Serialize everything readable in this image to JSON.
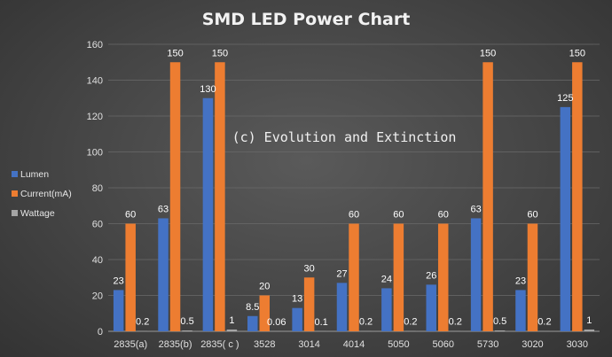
{
  "chart_data": {
    "type": "bar",
    "title": "SMD LED Power Chart",
    "watermark": "(c) Evolution and Extinction",
    "xlabel": "",
    "ylabel": "",
    "ylim": [
      0,
      160
    ],
    "yticks": [
      0,
      20,
      40,
      60,
      80,
      100,
      120,
      140,
      160
    ],
    "grid": true,
    "legend_position": "left",
    "categories": [
      "2835(a)",
      "2835(b)",
      "2835( c )",
      "3528",
      "3014",
      "4014",
      "5050",
      "5060",
      "5730",
      "3020",
      "3030"
    ],
    "series": [
      {
        "name": "Lumen",
        "color": "#4472C4",
        "values": [
          23,
          63,
          130,
          8.5,
          13,
          27,
          24,
          26,
          63,
          23,
          125
        ],
        "labels": [
          "23",
          "63",
          "130",
          "8.5",
          "13",
          "27",
          "24",
          "26",
          "63",
          "23",
          "125"
        ]
      },
      {
        "name": "Current(mA)",
        "color": "#ED7D31",
        "values": [
          60,
          150,
          150,
          20,
          30,
          60,
          60,
          60,
          150,
          60,
          150
        ],
        "labels": [
          "60",
          "150",
          "150",
          "20",
          "30",
          "60",
          "60",
          "60",
          "150",
          "60",
          "150"
        ]
      },
      {
        "name": "Wattage",
        "color": "#A5A5A5",
        "values": [
          0.2,
          0.5,
          1,
          0.06,
          0.1,
          0.2,
          0.2,
          0.2,
          0.5,
          0.2,
          1
        ],
        "labels": [
          "0.2",
          "0.5",
          "1",
          "0.06",
          "0.1",
          "0.2",
          "0.2",
          "0.2",
          "0.5",
          "0.2",
          "1"
        ]
      }
    ]
  }
}
